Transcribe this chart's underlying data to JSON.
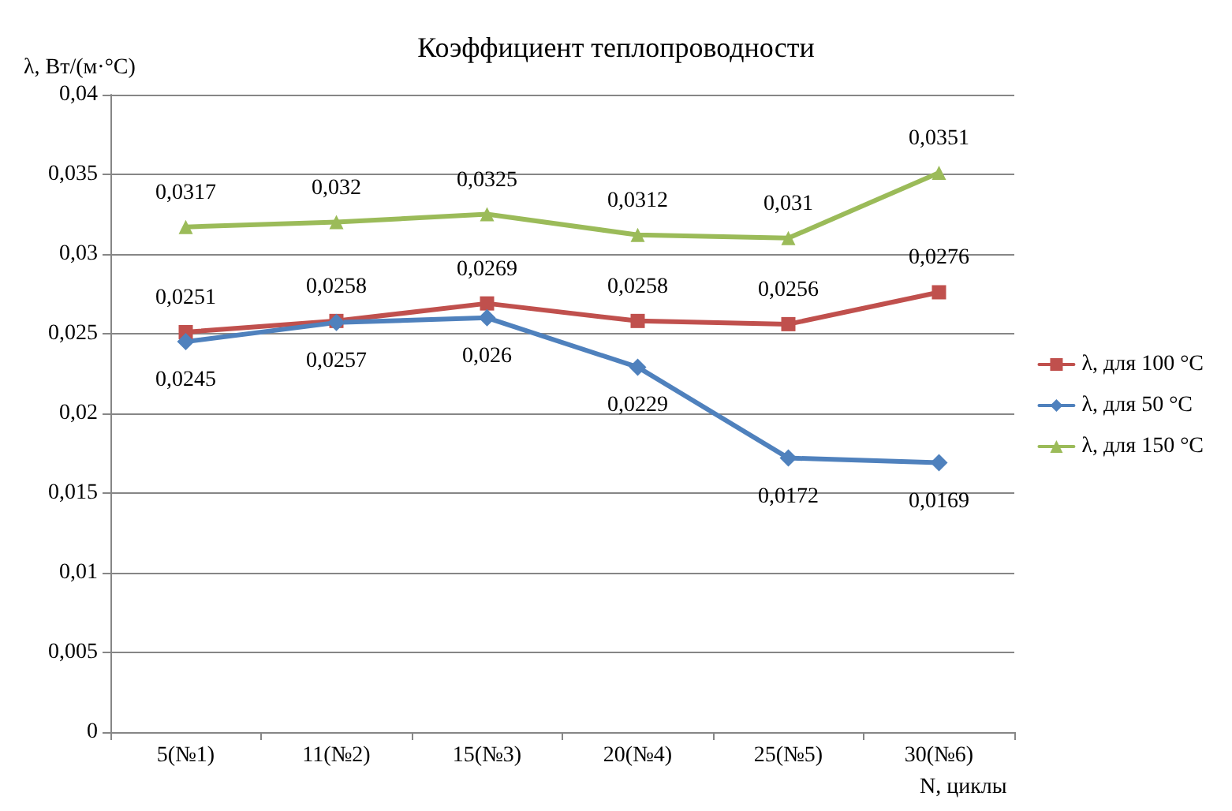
{
  "chart_data": {
    "type": "line",
    "title": "Коэффициент теплопроводности",
    "ylabel": "λ, Вт/(м·°C)",
    "xlabel": "N, циклы",
    "categories": [
      "5(№1)",
      "11(№2)",
      "15(№3)",
      "20(№4)",
      "25(№5)",
      "30(№6)"
    ],
    "series": [
      {
        "name": "λ, для 100 °C",
        "color": "#c0504d",
        "marker": "square",
        "values": [
          0.0251,
          0.0258,
          0.0269,
          0.0258,
          0.0256,
          0.0276
        ],
        "value_labels": [
          "0,0251",
          "0,0258",
          "0,0269",
          "0,0258",
          "0,0256",
          "0,0276"
        ]
      },
      {
        "name": "λ, для 50 °C",
        "color": "#4f81bd",
        "marker": "diamond",
        "values": [
          0.0245,
          0.0257,
          0.026,
          0.0229,
          0.0172,
          0.0169
        ],
        "value_labels": [
          "0,0245",
          "0,0257",
          "0,026",
          "0,0229",
          "0,0172",
          "0,0169"
        ]
      },
      {
        "name": "λ, для 150 °C",
        "color": "#9bbb59",
        "marker": "triangle",
        "values": [
          0.0317,
          0.032,
          0.0325,
          0.0312,
          0.031,
          0.0351
        ],
        "value_labels": [
          "0,0317",
          "0,032",
          "0,0325",
          "0,0312",
          "0,031",
          "0,0351"
        ]
      }
    ],
    "ylim": [
      0,
      0.04
    ],
    "yticks": [
      {
        "value": 0,
        "label": "0"
      },
      {
        "value": 0.005,
        "label": "0,005"
      },
      {
        "value": 0.01,
        "label": "0,01"
      },
      {
        "value": 0.015,
        "label": "0,015"
      },
      {
        "value": 0.02,
        "label": "0,02"
      },
      {
        "value": 0.025,
        "label": "0,025"
      },
      {
        "value": 0.03,
        "label": "0,03"
      },
      {
        "value": 0.035,
        "label": "0,035"
      },
      {
        "value": 0.04,
        "label": "0,04"
      }
    ],
    "grid": "y",
    "legend": "right",
    "line_style": "solid"
  }
}
